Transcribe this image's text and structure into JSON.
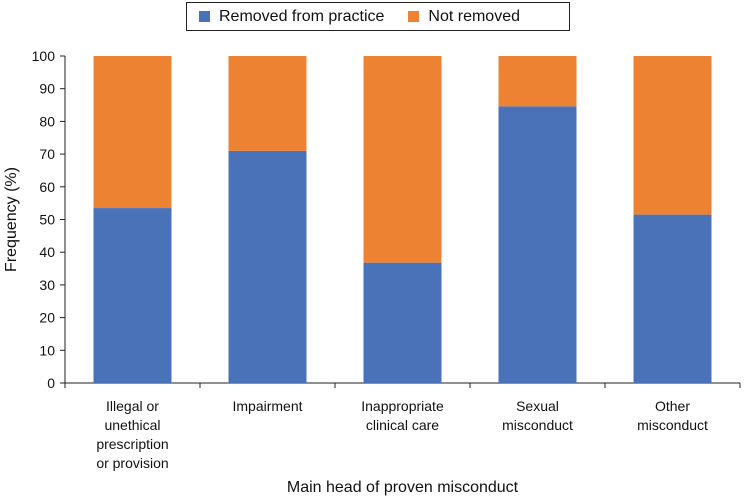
{
  "chart_data": {
    "type": "bar",
    "stacked": true,
    "categories": [
      [
        "Illegal or",
        "unethical",
        "prescription",
        "or provision"
      ],
      [
        "Impairment"
      ],
      [
        "Inappropriate",
        "clinical care"
      ],
      [
        "Sexual",
        "misconduct"
      ],
      [
        "Other",
        "misconduct"
      ]
    ],
    "series": [
      {
        "name": "Removed from practice",
        "color": "#4a72b8",
        "values": [
          53.5,
          71,
          36.8,
          84.6,
          51.5
        ]
      },
      {
        "name": "Not removed",
        "color": "#ed8233",
        "values": [
          46.5,
          29,
          63.2,
          15.4,
          48.5
        ]
      }
    ],
    "xlabel": "Main head of proven misconduct",
    "ylabel": "Frequency (%)",
    "ylim": [
      0,
      100
    ],
    "yticks": [
      0,
      10,
      20,
      30,
      40,
      50,
      60,
      70,
      80,
      90,
      100
    ],
    "grid": false,
    "legend": "top"
  }
}
